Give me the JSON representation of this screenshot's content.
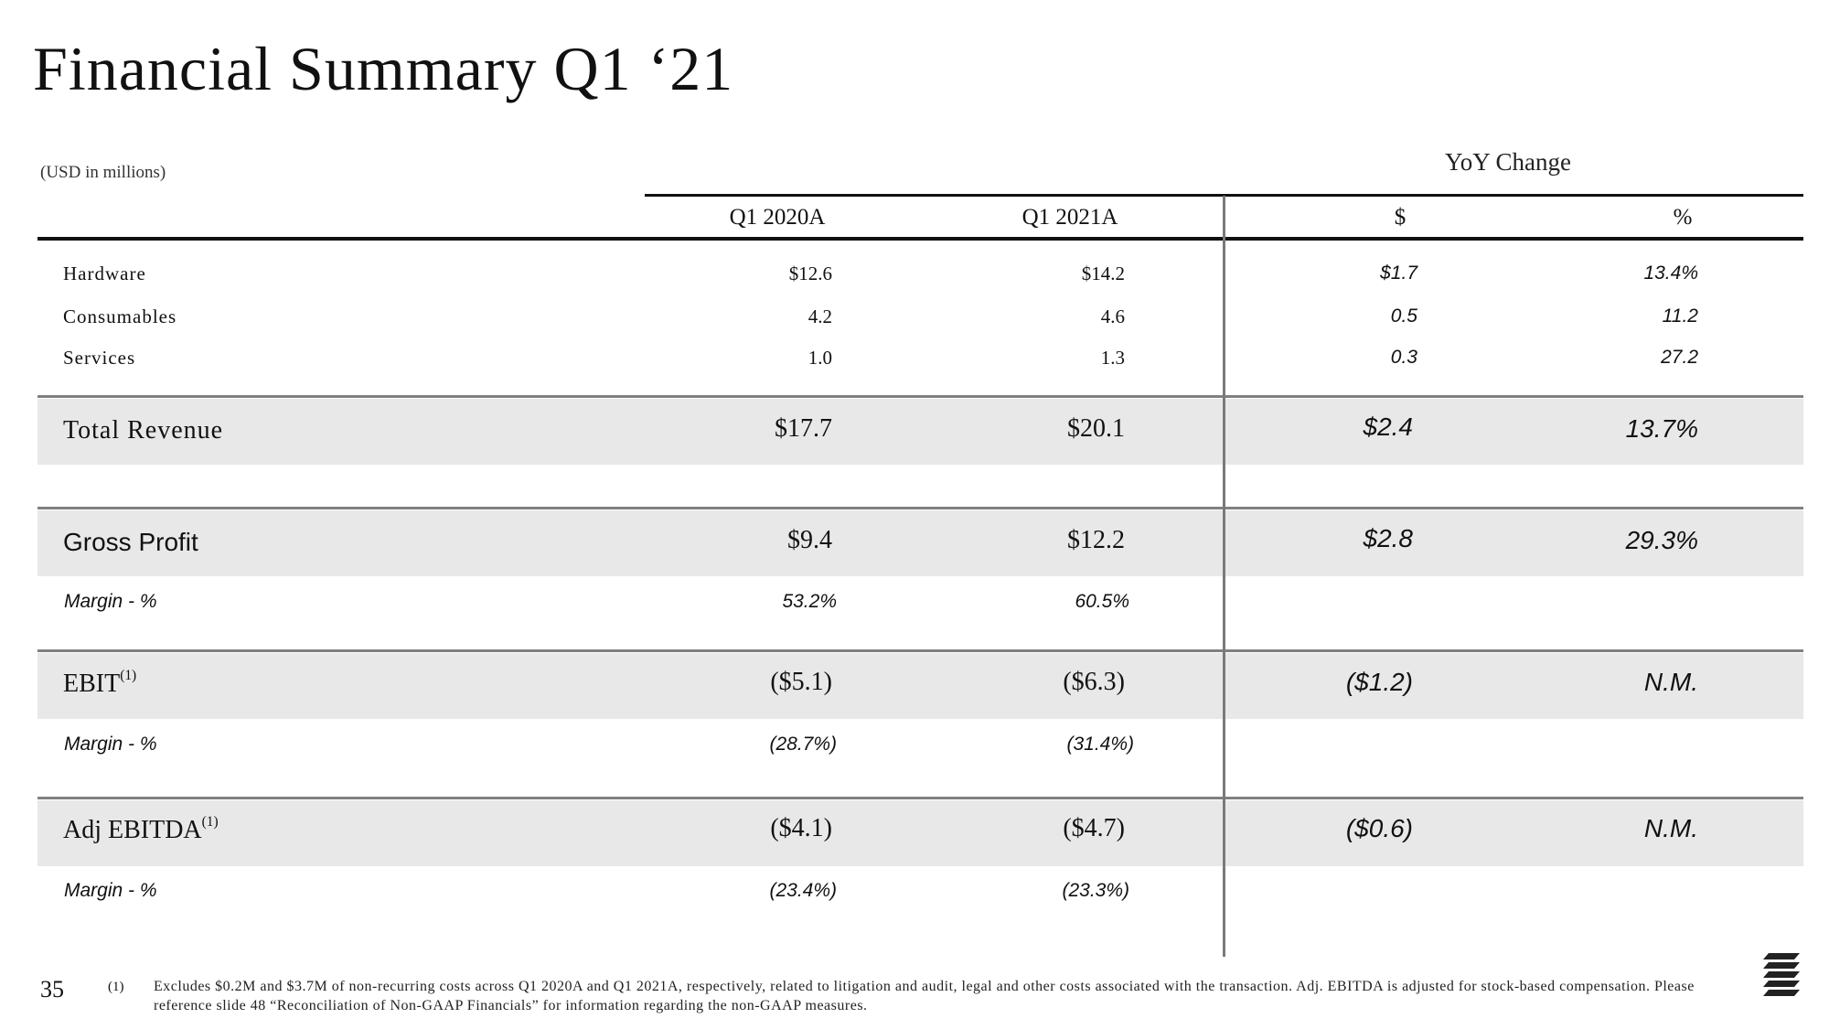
{
  "title": "Financial Summary Q1 ‘21",
  "units": "(USD in millions)",
  "yoy_label": "YoY Change",
  "headers": [
    "Q1 2020A",
    "Q1 2021A",
    "$",
    "%"
  ],
  "rows": {
    "hardware": {
      "label": "Hardware",
      "q1_2020": "$12.6",
      "q1_2021": "$14.2",
      "chg_usd": "$1.7",
      "chg_pct": "13.4%"
    },
    "consumables": {
      "label": "Consumables",
      "q1_2020": "4.2",
      "q1_2021": "4.6",
      "chg_usd": "0.5",
      "chg_pct": "11.2"
    },
    "services": {
      "label": "Services",
      "q1_2020": "1.0",
      "q1_2021": "1.3",
      "chg_usd": "0.3",
      "chg_pct": "27.2"
    },
    "total_revenue": {
      "label": "Total Revenue",
      "q1_2020": "$17.7",
      "q1_2021": "$20.1",
      "chg_usd": "$2.4",
      "chg_pct": "13.7%"
    },
    "gross_profit": {
      "label": "Gross Profit",
      "q1_2020": "$9.4",
      "q1_2021": "$12.2",
      "chg_usd": "$2.8",
      "chg_pct": "29.3%"
    },
    "gp_margin": {
      "label": "Margin - %",
      "q1_2020": "53.2%",
      "q1_2021": "60.5%"
    },
    "ebit": {
      "label": "EBIT",
      "sup": "(1)",
      "q1_2020": "($5.1)",
      "q1_2021": "($6.3)",
      "chg_usd": "($1.2)",
      "chg_pct": "N.M."
    },
    "ebit_margin": {
      "label": "Margin - %",
      "q1_2020": "(28.7%)",
      "q1_2021": "(31.4%)"
    },
    "adj_ebitda": {
      "label": "Adj EBITDA",
      "sup": "(1)",
      "q1_2020": "($4.1)",
      "q1_2021": "($4.7)",
      "chg_usd": "($0.6)",
      "chg_pct": "N.M."
    },
    "ebitda_margin": {
      "label": "Margin - %",
      "q1_2020": "(23.4%)",
      "q1_2021": "(23.3%)"
    }
  },
  "page_number": "35",
  "footnote_marker": "(1)",
  "footnote": "Excludes $0.2M and $3.7M of non-recurring costs across Q1 2020A and Q1 2021A, respectively, related to litigation and audit, legal and other costs associated with the transaction.  Adj. EBITDA is adjusted for stock-based compensation. Please reference slide 48 “Reconciliation of Non-GAAP Financials” for information regarding the non-GAAP measures.",
  "logo_icon": "stacked-stripes-logo-icon"
}
